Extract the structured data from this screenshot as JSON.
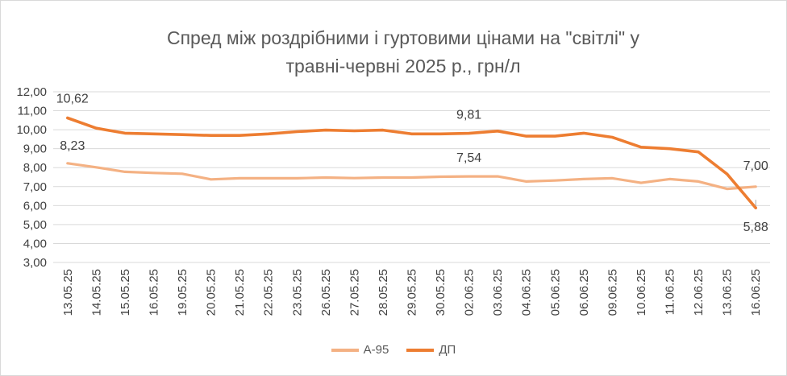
{
  "chart_data": {
    "type": "line",
    "title": "Спред між роздрібними і гуртовими цінами на \"світлі\" у травні-червні 2025 р., грн/л",
    "title_lines": [
      "Спред між роздрібними і гуртовими цінами на \"світлі\" у",
      "травні-червні 2025 р., грн/л"
    ],
    "x": [
      "13.05.25",
      "14.05.25",
      "15.05.25",
      "16.05.25",
      "19.05.25",
      "20.05.25",
      "21.05.25",
      "22.05.25",
      "23.05.25",
      "26.05.25",
      "27.05.25",
      "28.05.25",
      "29.05.25",
      "30.05.25",
      "02.06.25",
      "03.06.25",
      "04.06.25",
      "05.06.25",
      "06.06.25",
      "09.06.25",
      "10.06.25",
      "11.06.25",
      "12.06.25",
      "13.06.25",
      "16.06.25"
    ],
    "ylim": [
      3,
      12
    ],
    "yticks": [
      "3,00",
      "4,00",
      "5,00",
      "6,00",
      "7,00",
      "8,00",
      "9,00",
      "10,00",
      "11,00",
      "12,00"
    ],
    "grid": true,
    "legend_position": "bottom",
    "series": [
      {
        "name": "А-95",
        "color": "#f4b183",
        "values": [
          8.23,
          8.02,
          7.78,
          7.72,
          7.68,
          7.38,
          7.44,
          7.44,
          7.44,
          7.48,
          7.45,
          7.48,
          7.48,
          7.52,
          7.54,
          7.54,
          7.27,
          7.32,
          7.4,
          7.44,
          7.2,
          7.4,
          7.27,
          6.88,
          7.0
        ],
        "labels": [
          {
            "index": 0,
            "text": "8,23"
          },
          {
            "index": 14,
            "text": "7,54"
          },
          {
            "index": 24,
            "text": "7,00"
          }
        ]
      },
      {
        "name": "ДП",
        "color": "#ed7d31",
        "values": [
          10.62,
          10.08,
          9.82,
          9.78,
          9.74,
          9.7,
          9.7,
          9.78,
          9.9,
          9.98,
          9.94,
          9.98,
          9.78,
          9.78,
          9.81,
          9.93,
          9.66,
          9.66,
          9.82,
          9.6,
          9.08,
          9.0,
          8.83,
          7.66,
          5.88
        ],
        "labels": [
          {
            "index": 0,
            "text": "10,62"
          },
          {
            "index": 14,
            "text": "9,81"
          },
          {
            "index": 24,
            "text": "5,88"
          }
        ]
      }
    ]
  }
}
